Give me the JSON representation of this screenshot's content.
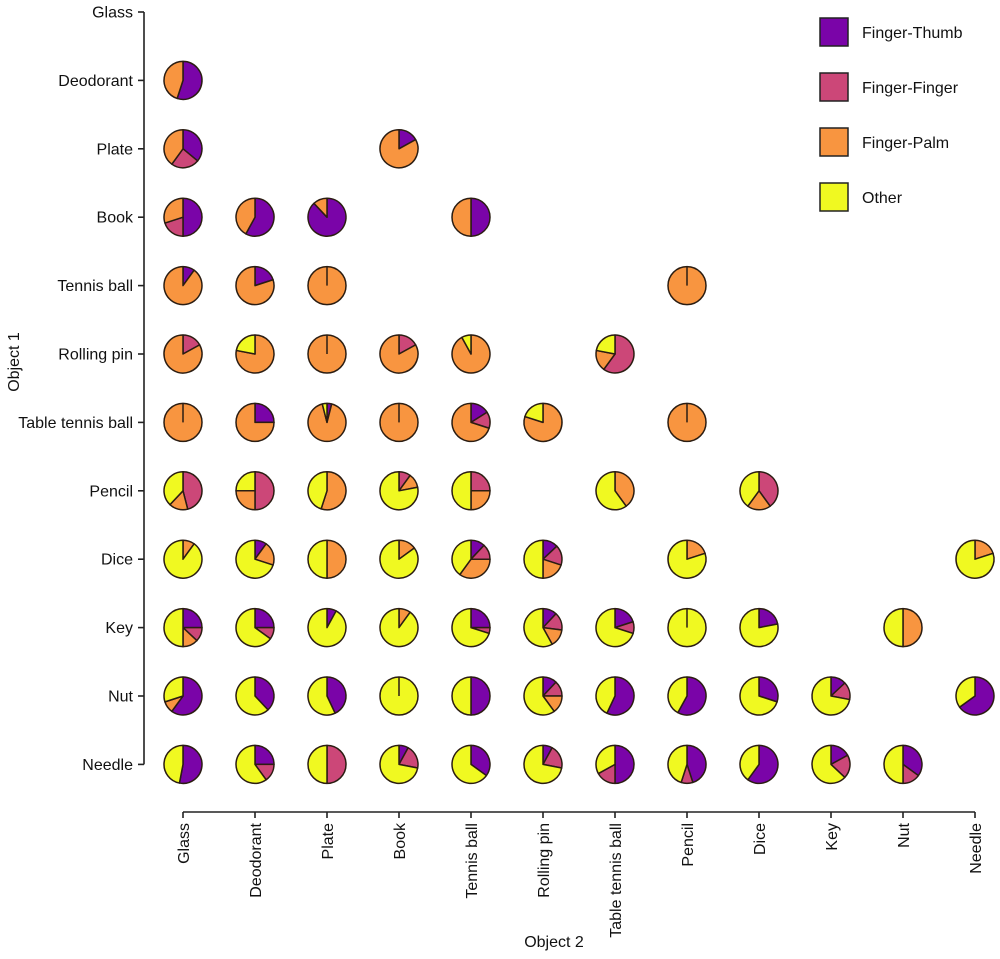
{
  "chart_data": {
    "type": "pie-grid",
    "xlabel": "Object 2",
    "ylabel": "Object 1",
    "objects": [
      "Glass",
      "Deodorant",
      "Plate",
      "Book",
      "Tennis ball",
      "Rolling pin",
      "Table tennis ball",
      "Pencil",
      "Dice",
      "Key",
      "Nut",
      "Needle"
    ],
    "legend_position": "top-right",
    "series": [
      {
        "name": "Finger-Thumb",
        "color": "#7a04a8"
      },
      {
        "name": "Finger-Finger",
        "color": "#cc4778"
      },
      {
        "name": "Finger-Palm",
        "color": "#f89540"
      },
      {
        "name": "Other",
        "color": "#f0f921"
      }
    ],
    "slice_order": "clockwise from top, series order",
    "cells": [
      {
        "row": "Deodorant",
        "col": "Glass",
        "values": [
          0.55,
          0,
          0.45,
          0
        ]
      },
      {
        "row": "Plate",
        "col": "Glass",
        "values": [
          0.36,
          0.24,
          0.4,
          0
        ]
      },
      {
        "row": "Plate",
        "col": "Book",
        "values": [
          0.17,
          0,
          0.83,
          0
        ]
      },
      {
        "row": "Book",
        "col": "Glass",
        "values": [
          0.5,
          0.2,
          0.3,
          0
        ]
      },
      {
        "row": "Book",
        "col": "Deodorant",
        "values": [
          0.58,
          0,
          0.42,
          0
        ]
      },
      {
        "row": "Book",
        "col": "Plate",
        "values": [
          0.88,
          0,
          0.12,
          0
        ]
      },
      {
        "row": "Book",
        "col": "Tennis ball",
        "values": [
          0.5,
          0,
          0.5,
          0
        ]
      },
      {
        "row": "Tennis ball",
        "col": "Glass",
        "values": [
          0.1,
          0,
          0.9,
          0
        ]
      },
      {
        "row": "Tennis ball",
        "col": "Deodorant",
        "values": [
          0.2,
          0,
          0.8,
          0
        ]
      },
      {
        "row": "Tennis ball",
        "col": "Plate",
        "values": [
          0,
          0,
          1,
          0
        ]
      },
      {
        "row": "Tennis ball",
        "col": "Pencil",
        "values": [
          0,
          0,
          1,
          0
        ]
      },
      {
        "row": "Rolling pin",
        "col": "Glass",
        "values": [
          0,
          0.17,
          0.83,
          0
        ]
      },
      {
        "row": "Rolling pin",
        "col": "Deodorant",
        "values": [
          0,
          0,
          0.78,
          0.22
        ]
      },
      {
        "row": "Rolling pin",
        "col": "Plate",
        "values": [
          0,
          0,
          1,
          0
        ]
      },
      {
        "row": "Rolling pin",
        "col": "Book",
        "values": [
          0,
          0.17,
          0.83,
          0
        ]
      },
      {
        "row": "Rolling pin",
        "col": "Tennis ball",
        "values": [
          0,
          0,
          0.92,
          0.08
        ]
      },
      {
        "row": "Rolling pin",
        "col": "Table tennis ball",
        "values": [
          0,
          0.6,
          0.18,
          0.22
        ]
      },
      {
        "row": "Table tennis ball",
        "col": "Glass",
        "values": [
          0,
          0,
          1,
          0
        ]
      },
      {
        "row": "Table tennis ball",
        "col": "Deodorant",
        "values": [
          0.25,
          0,
          0.75,
          0
        ]
      },
      {
        "row": "Table tennis ball",
        "col": "Plate",
        "values": [
          0.04,
          0,
          0.92,
          0.04
        ]
      },
      {
        "row": "Table tennis ball",
        "col": "Book",
        "values": [
          0,
          0,
          1,
          0
        ]
      },
      {
        "row": "Table tennis ball",
        "col": "Tennis ball",
        "values": [
          0.16,
          0.14,
          0.7,
          0
        ]
      },
      {
        "row": "Table tennis ball",
        "col": "Rolling pin",
        "values": [
          0,
          0,
          0.8,
          0.2
        ]
      },
      {
        "row": "Table tennis ball",
        "col": "Pencil",
        "values": [
          0,
          0,
          1,
          0
        ]
      },
      {
        "row": "Pencil",
        "col": "Glass",
        "values": [
          0,
          0.46,
          0.16,
          0.38
        ]
      },
      {
        "row": "Pencil",
        "col": "Deodorant",
        "values": [
          0,
          0.5,
          0.25,
          0.25
        ]
      },
      {
        "row": "Pencil",
        "col": "Plate",
        "values": [
          0,
          0,
          0.55,
          0.45
        ]
      },
      {
        "row": "Pencil",
        "col": "Book",
        "values": [
          0,
          0.1,
          0.12,
          0.78
        ]
      },
      {
        "row": "Pencil",
        "col": "Tennis ball",
        "values": [
          0,
          0.25,
          0.25,
          0.5
        ]
      },
      {
        "row": "Pencil",
        "col": "Table tennis ball",
        "values": [
          0,
          0,
          0.4,
          0.6
        ]
      },
      {
        "row": "Pencil",
        "col": "Dice",
        "values": [
          0,
          0.4,
          0.2,
          0.4
        ]
      },
      {
        "row": "Dice",
        "col": "Glass",
        "values": [
          0,
          0,
          0.1,
          0.9
        ]
      },
      {
        "row": "Dice",
        "col": "Deodorant",
        "values": [
          0.1,
          0,
          0.2,
          0.7
        ]
      },
      {
        "row": "Dice",
        "col": "Plate",
        "values": [
          0,
          0,
          0.5,
          0.5
        ]
      },
      {
        "row": "Dice",
        "col": "Book",
        "values": [
          0,
          0,
          0.15,
          0.85
        ]
      },
      {
        "row": "Dice",
        "col": "Tennis ball",
        "values": [
          0.12,
          0.13,
          0.35,
          0.4
        ]
      },
      {
        "row": "Dice",
        "col": "Rolling pin",
        "values": [
          0.13,
          0.17,
          0.2,
          0.5
        ]
      },
      {
        "row": "Dice",
        "col": "Pencil",
        "values": [
          0,
          0,
          0.2,
          0.8
        ]
      },
      {
        "row": "Dice",
        "col": "Needle",
        "values": [
          0,
          0,
          0.2,
          0.8
        ]
      },
      {
        "row": "Key",
        "col": "Glass",
        "values": [
          0.25,
          0.12,
          0.13,
          0.5
        ]
      },
      {
        "row": "Key",
        "col": "Deodorant",
        "values": [
          0.25,
          0.1,
          0,
          0.65
        ]
      },
      {
        "row": "Key",
        "col": "Plate",
        "values": [
          0.08,
          0,
          0,
          0.92
        ]
      },
      {
        "row": "Key",
        "col": "Book",
        "values": [
          0,
          0,
          0.1,
          0.9
        ]
      },
      {
        "row": "Key",
        "col": "Tennis ball",
        "values": [
          0.25,
          0.05,
          0,
          0.7
        ]
      },
      {
        "row": "Key",
        "col": "Rolling pin",
        "values": [
          0.12,
          0.15,
          0.15,
          0.58
        ]
      },
      {
        "row": "Key",
        "col": "Table tennis ball",
        "values": [
          0.2,
          0.1,
          0,
          0.7
        ]
      },
      {
        "row": "Key",
        "col": "Pencil",
        "values": [
          0,
          0,
          0,
          1
        ]
      },
      {
        "row": "Key",
        "col": "Dice",
        "values": [
          0.22,
          0,
          0,
          0.78
        ]
      },
      {
        "row": "Key",
        "col": "Nut",
        "values": [
          0,
          0,
          0.5,
          0.5
        ]
      },
      {
        "row": "Nut",
        "col": "Glass",
        "values": [
          0.6,
          0,
          0.1,
          0.3
        ]
      },
      {
        "row": "Nut",
        "col": "Deodorant",
        "values": [
          0.38,
          0,
          0,
          0.62
        ]
      },
      {
        "row": "Nut",
        "col": "Plate",
        "values": [
          0.43,
          0,
          0,
          0.57
        ]
      },
      {
        "row": "Nut",
        "col": "Book",
        "values": [
          0,
          0,
          0,
          1
        ]
      },
      {
        "row": "Nut",
        "col": "Tennis ball",
        "values": [
          0.5,
          0,
          0,
          0.5
        ]
      },
      {
        "row": "Nut",
        "col": "Rolling pin",
        "values": [
          0.12,
          0.13,
          0.15,
          0.6
        ]
      },
      {
        "row": "Nut",
        "col": "Table tennis ball",
        "values": [
          0.57,
          0,
          0,
          0.43
        ]
      },
      {
        "row": "Nut",
        "col": "Pencil",
        "values": [
          0.58,
          0,
          0,
          0.42
        ]
      },
      {
        "row": "Nut",
        "col": "Dice",
        "values": [
          0.3,
          0,
          0,
          0.7
        ]
      },
      {
        "row": "Nut",
        "col": "Key",
        "values": [
          0.13,
          0.15,
          0,
          0.72
        ]
      },
      {
        "row": "Nut",
        "col": "Needle",
        "values": [
          0.65,
          0,
          0,
          0.35
        ]
      },
      {
        "row": "Needle",
        "col": "Glass",
        "values": [
          0.53,
          0,
          0,
          0.47
        ]
      },
      {
        "row": "Needle",
        "col": "Deodorant",
        "values": [
          0.25,
          0.15,
          0,
          0.6
        ]
      },
      {
        "row": "Needle",
        "col": "Plate",
        "values": [
          0,
          0.5,
          0,
          0.5
        ]
      },
      {
        "row": "Needle",
        "col": "Book",
        "values": [
          0.08,
          0.2,
          0,
          0.72
        ]
      },
      {
        "row": "Needle",
        "col": "Tennis ball",
        "values": [
          0.35,
          0,
          0,
          0.65
        ]
      },
      {
        "row": "Needle",
        "col": "Rolling pin",
        "values": [
          0.08,
          0.2,
          0,
          0.72
        ]
      },
      {
        "row": "Needle",
        "col": "Table tennis ball",
        "values": [
          0.5,
          0.17,
          0,
          0.33
        ]
      },
      {
        "row": "Needle",
        "col": "Pencil",
        "values": [
          0.45,
          0.1,
          0,
          0.45
        ]
      },
      {
        "row": "Needle",
        "col": "Dice",
        "values": [
          0.6,
          0,
          0,
          0.4
        ]
      },
      {
        "row": "Needle",
        "col": "Key",
        "values": [
          0.17,
          0.2,
          0,
          0.63
        ]
      },
      {
        "row": "Needle",
        "col": "Nut",
        "values": [
          0.35,
          0.15,
          0,
          0.5
        ]
      }
    ]
  }
}
